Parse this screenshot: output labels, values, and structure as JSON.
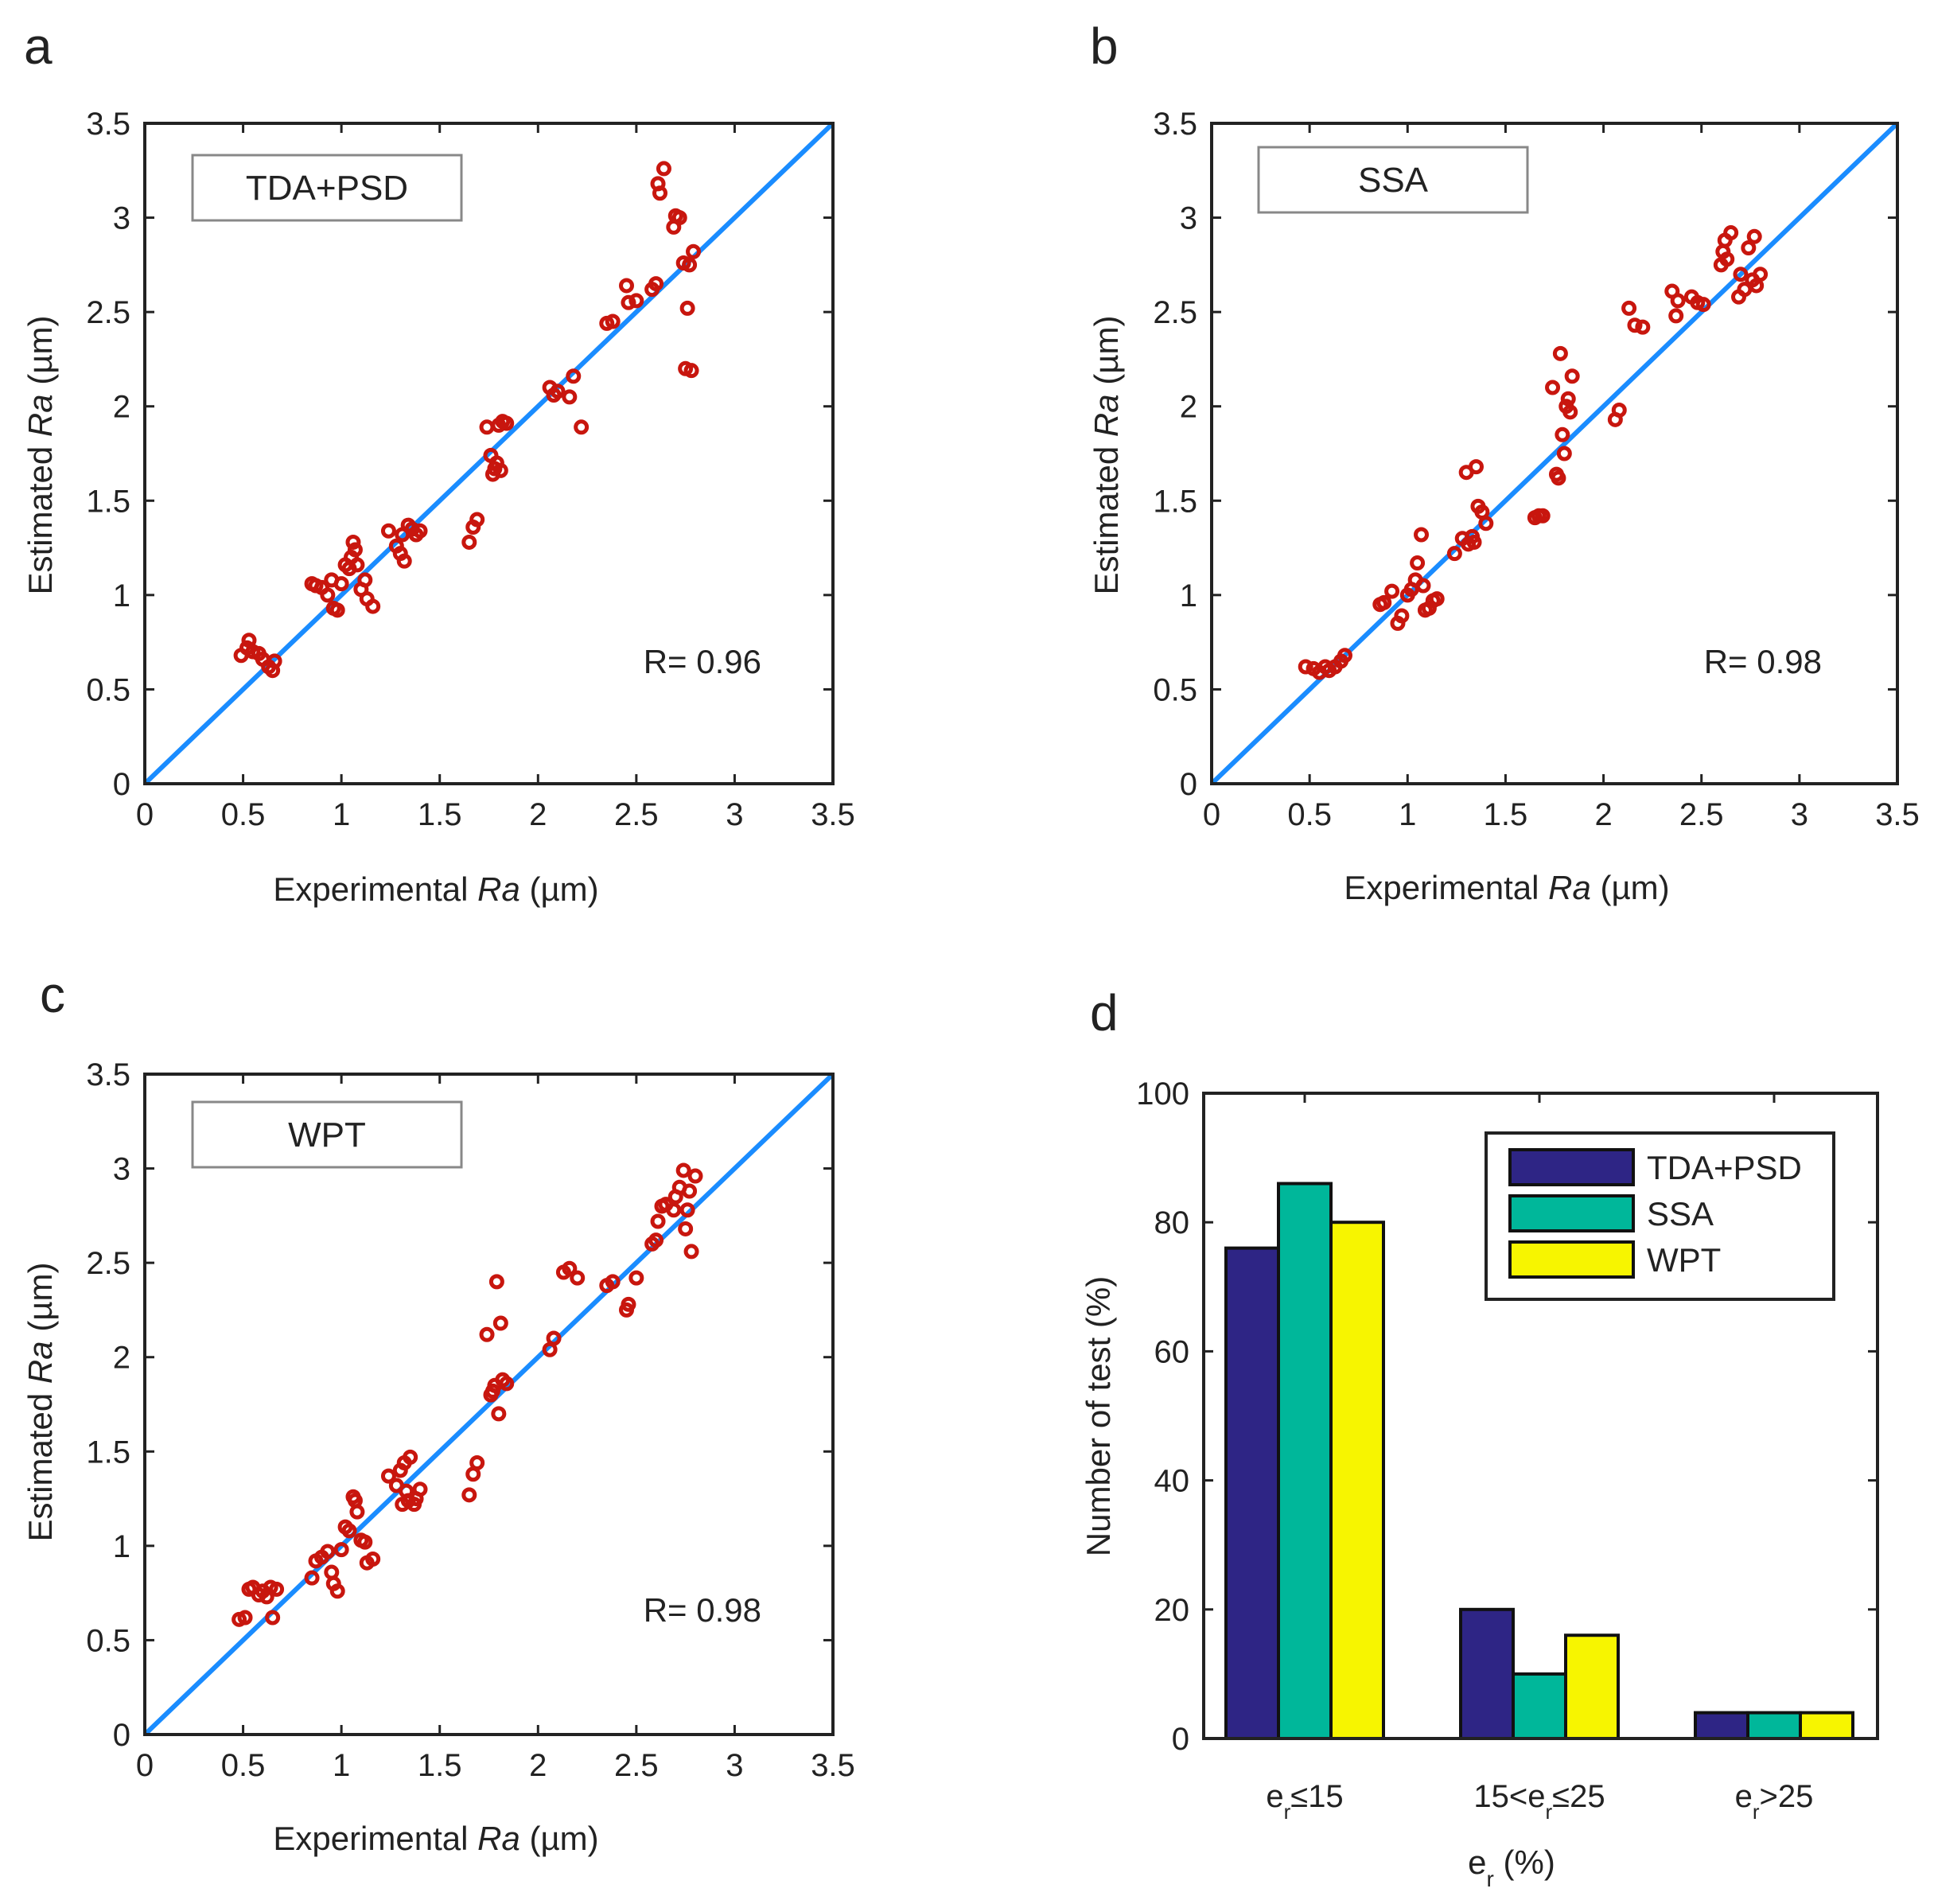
{
  "chart_data": [
    {
      "panel": "a",
      "type": "scatter",
      "legend": "TDA+PSD",
      "r_label": "R= 0.96",
      "xlabel_prefix": "Experimental ",
      "xlabel_italic": "Ra",
      "xlabel_suffix": " (µm)",
      "ylabel_prefix": "Estimated ",
      "ylabel_italic": "Ra",
      "ylabel_suffix": "  (µm)",
      "xlim": [
        0,
        3.5
      ],
      "ylim": [
        0,
        3.5
      ],
      "ticks": [
        0,
        0.5,
        1,
        1.5,
        2,
        2.5,
        3,
        3.5
      ],
      "tick_labels": [
        "0",
        "0.5",
        "1",
        "1.5",
        "2",
        "2.5",
        "3",
        "3.5"
      ],
      "points": [
        [
          0.49,
          0.68
        ],
        [
          0.52,
          0.72
        ],
        [
          0.53,
          0.76
        ],
        [
          0.55,
          0.7
        ],
        [
          0.58,
          0.69
        ],
        [
          0.6,
          0.66
        ],
        [
          0.63,
          0.62
        ],
        [
          0.65,
          0.6
        ],
        [
          0.66,
          0.65
        ],
        [
          0.85,
          1.06
        ],
        [
          0.87,
          1.05
        ],
        [
          0.9,
          1.04
        ],
        [
          0.93,
          1.0
        ],
        [
          0.95,
          1.08
        ],
        [
          0.96,
          0.93
        ],
        [
          0.98,
          0.92
        ],
        [
          1.0,
          1.06
        ],
        [
          1.02,
          1.16
        ],
        [
          1.04,
          1.14
        ],
        [
          1.05,
          1.2
        ],
        [
          1.06,
          1.28
        ],
        [
          1.07,
          1.24
        ],
        [
          1.08,
          1.16
        ],
        [
          1.1,
          1.03
        ],
        [
          1.12,
          1.08
        ],
        [
          1.13,
          0.98
        ],
        [
          1.16,
          0.94
        ],
        [
          1.24,
          1.34
        ],
        [
          1.28,
          1.26
        ],
        [
          1.3,
          1.22
        ],
        [
          1.31,
          1.32
        ],
        [
          1.32,
          1.18
        ],
        [
          1.34,
          1.37
        ],
        [
          1.36,
          1.35
        ],
        [
          1.38,
          1.32
        ],
        [
          1.4,
          1.34
        ],
        [
          1.65,
          1.28
        ],
        [
          1.67,
          1.36
        ],
        [
          1.69,
          1.4
        ],
        [
          1.74,
          1.89
        ],
        [
          1.76,
          1.74
        ],
        [
          1.77,
          1.64
        ],
        [
          1.78,
          1.67
        ],
        [
          1.79,
          1.7
        ],
        [
          1.8,
          1.9
        ],
        [
          1.81,
          1.66
        ],
        [
          1.82,
          1.92
        ],
        [
          1.84,
          1.91
        ],
        [
          2.06,
          2.1
        ],
        [
          2.08,
          2.06
        ],
        [
          2.1,
          2.08
        ],
        [
          2.16,
          2.05
        ],
        [
          2.18,
          2.16
        ],
        [
          2.22,
          1.89
        ],
        [
          2.35,
          2.44
        ],
        [
          2.38,
          2.45
        ],
        [
          2.45,
          2.64
        ],
        [
          2.46,
          2.55
        ],
        [
          2.5,
          2.56
        ],
        [
          2.58,
          2.62
        ],
        [
          2.6,
          2.65
        ],
        [
          2.61,
          3.18
        ],
        [
          2.62,
          3.13
        ],
        [
          2.64,
          3.26
        ],
        [
          2.69,
          2.95
        ],
        [
          2.7,
          3.01
        ],
        [
          2.72,
          3.0
        ],
        [
          2.74,
          2.76
        ],
        [
          2.75,
          2.2
        ],
        [
          2.76,
          2.52
        ],
        [
          2.77,
          2.75
        ],
        [
          2.78,
          2.19
        ],
        [
          2.79,
          2.82
        ]
      ]
    },
    {
      "panel": "b",
      "type": "scatter",
      "legend": "SSA",
      "r_label": "R= 0.98",
      "xlabel_prefix": "Experimental ",
      "xlabel_italic": "Ra",
      "xlabel_suffix": " (µm)",
      "ylabel_prefix": "Estimated ",
      "ylabel_italic": "Ra",
      "ylabel_suffix": "  (µm)",
      "xlim": [
        0,
        3.5
      ],
      "ylim": [
        0,
        3.5
      ],
      "ticks": [
        0,
        0.5,
        1,
        1.5,
        2,
        2.5,
        3,
        3.5
      ],
      "tick_labels": [
        "0",
        "0.5",
        "1",
        "1.5",
        "2",
        "2.5",
        "3",
        "3.5"
      ],
      "points": [
        [
          0.48,
          0.62
        ],
        [
          0.52,
          0.61
        ],
        [
          0.55,
          0.59
        ],
        [
          0.58,
          0.62
        ],
        [
          0.6,
          0.6
        ],
        [
          0.63,
          0.62
        ],
        [
          0.66,
          0.65
        ],
        [
          0.68,
          0.68
        ],
        [
          0.86,
          0.95
        ],
        [
          0.88,
          0.96
        ],
        [
          0.92,
          1.02
        ],
        [
          0.95,
          0.85
        ],
        [
          0.97,
          0.89
        ],
        [
          1.0,
          1.0
        ],
        [
          1.02,
          1.03
        ],
        [
          1.04,
          1.08
        ],
        [
          1.05,
          1.17
        ],
        [
          1.07,
          1.32
        ],
        [
          1.08,
          1.05
        ],
        [
          1.09,
          0.92
        ],
        [
          1.11,
          0.93
        ],
        [
          1.13,
          0.97
        ],
        [
          1.15,
          0.98
        ],
        [
          1.24,
          1.22
        ],
        [
          1.28,
          1.3
        ],
        [
          1.3,
          1.65
        ],
        [
          1.31,
          1.27
        ],
        [
          1.33,
          1.31
        ],
        [
          1.34,
          1.28
        ],
        [
          1.35,
          1.68
        ],
        [
          1.36,
          1.47
        ],
        [
          1.38,
          1.44
        ],
        [
          1.4,
          1.38
        ],
        [
          1.65,
          1.41
        ],
        [
          1.67,
          1.42
        ],
        [
          1.69,
          1.42
        ],
        [
          1.74,
          2.1
        ],
        [
          1.76,
          1.64
        ],
        [
          1.77,
          1.62
        ],
        [
          1.78,
          2.28
        ],
        [
          1.79,
          1.85
        ],
        [
          1.8,
          1.75
        ],
        [
          1.81,
          2.0
        ],
        [
          1.82,
          2.04
        ],
        [
          1.83,
          1.97
        ],
        [
          1.84,
          2.16
        ],
        [
          2.06,
          1.93
        ],
        [
          2.08,
          1.98
        ],
        [
          2.13,
          2.52
        ],
        [
          2.16,
          2.43
        ],
        [
          2.2,
          2.42
        ],
        [
          2.35,
          2.61
        ],
        [
          2.37,
          2.48
        ],
        [
          2.38,
          2.56
        ],
        [
          2.45,
          2.58
        ],
        [
          2.48,
          2.55
        ],
        [
          2.51,
          2.54
        ],
        [
          2.6,
          2.75
        ],
        [
          2.61,
          2.82
        ],
        [
          2.62,
          2.88
        ],
        [
          2.63,
          2.78
        ],
        [
          2.65,
          2.92
        ],
        [
          2.69,
          2.58
        ],
        [
          2.7,
          2.7
        ],
        [
          2.72,
          2.62
        ],
        [
          2.74,
          2.84
        ],
        [
          2.76,
          2.67
        ],
        [
          2.77,
          2.9
        ],
        [
          2.78,
          2.64
        ],
        [
          2.8,
          2.7
        ]
      ]
    },
    {
      "panel": "c",
      "type": "scatter",
      "legend": "WPT",
      "r_label": "R= 0.98",
      "xlabel_prefix": "Experimental ",
      "xlabel_italic": "Ra",
      "xlabel_suffix": " (µm)",
      "ylabel_prefix": "Estimated ",
      "ylabel_italic": "Ra",
      "ylabel_suffix": "  (µm)",
      "xlim": [
        0,
        3.5
      ],
      "ylim": [
        0,
        3.5
      ],
      "ticks": [
        0,
        0.5,
        1,
        1.5,
        2,
        2.5,
        3,
        3.5
      ],
      "tick_labels": [
        "0",
        "0.5",
        "1",
        "1.5",
        "2",
        "2.5",
        "3",
        "3.5"
      ],
      "points": [
        [
          0.48,
          0.61
        ],
        [
          0.51,
          0.62
        ],
        [
          0.53,
          0.77
        ],
        [
          0.55,
          0.78
        ],
        [
          0.58,
          0.74
        ],
        [
          0.6,
          0.76
        ],
        [
          0.62,
          0.73
        ],
        [
          0.64,
          0.78
        ],
        [
          0.65,
          0.62
        ],
        [
          0.67,
          0.77
        ],
        [
          0.85,
          0.83
        ],
        [
          0.87,
          0.92
        ],
        [
          0.9,
          0.94
        ],
        [
          0.93,
          0.97
        ],
        [
          0.95,
          0.86
        ],
        [
          0.96,
          0.8
        ],
        [
          0.98,
          0.76
        ],
        [
          1.0,
          0.98
        ],
        [
          1.02,
          1.1
        ],
        [
          1.04,
          1.08
        ],
        [
          1.06,
          1.26
        ],
        [
          1.07,
          1.24
        ],
        [
          1.08,
          1.18
        ],
        [
          1.1,
          1.03
        ],
        [
          1.12,
          1.02
        ],
        [
          1.13,
          0.91
        ],
        [
          1.16,
          0.93
        ],
        [
          1.24,
          1.37
        ],
        [
          1.28,
          1.32
        ],
        [
          1.3,
          1.4
        ],
        [
          1.31,
          1.22
        ],
        [
          1.32,
          1.44
        ],
        [
          1.33,
          1.29
        ],
        [
          1.34,
          1.24
        ],
        [
          1.35,
          1.47
        ],
        [
          1.37,
          1.22
        ],
        [
          1.38,
          1.25
        ],
        [
          1.4,
          1.3
        ],
        [
          1.65,
          1.27
        ],
        [
          1.67,
          1.38
        ],
        [
          1.69,
          1.44
        ],
        [
          1.74,
          2.12
        ],
        [
          1.76,
          1.8
        ],
        [
          1.77,
          1.82
        ],
        [
          1.78,
          1.85
        ],
        [
          1.79,
          2.4
        ],
        [
          1.8,
          1.7
        ],
        [
          1.81,
          2.18
        ],
        [
          1.82,
          1.88
        ],
        [
          1.84,
          1.86
        ],
        [
          2.06,
          2.04
        ],
        [
          2.08,
          2.1
        ],
        [
          2.13,
          2.45
        ],
        [
          2.16,
          2.47
        ],
        [
          2.2,
          2.42
        ],
        [
          2.35,
          2.38
        ],
        [
          2.38,
          2.4
        ],
        [
          2.45,
          2.25
        ],
        [
          2.46,
          2.28
        ],
        [
          2.5,
          2.42
        ],
        [
          2.58,
          2.6
        ],
        [
          2.6,
          2.62
        ],
        [
          2.61,
          2.72
        ],
        [
          2.63,
          2.8
        ],
        [
          2.65,
          2.81
        ],
        [
          2.69,
          2.78
        ],
        [
          2.7,
          2.85
        ],
        [
          2.72,
          2.9
        ],
        [
          2.74,
          2.99
        ],
        [
          2.75,
          2.68
        ],
        [
          2.76,
          2.78
        ],
        [
          2.77,
          2.88
        ],
        [
          2.78,
          2.56
        ],
        [
          2.8,
          2.96
        ]
      ]
    },
    {
      "panel": "d",
      "type": "bar",
      "categories": [
        "e_r≤15",
        "15<e_r≤25",
        "e_r>25"
      ],
      "category_parts": [
        [
          "e",
          "r",
          "≤15"
        ],
        [
          "15<e",
          "r",
          "≤25"
        ],
        [
          "e",
          "r",
          ">25"
        ]
      ],
      "series": [
        {
          "name": "TDA+PSD",
          "color": "#2e2585",
          "values": [
            76,
            20,
            4
          ]
        },
        {
          "name": "SSA",
          "color": "#00b79a",
          "values": [
            86,
            10,
            4
          ]
        },
        {
          "name": "WPT",
          "color": "#f7f500",
          "values": [
            80,
            16,
            4
          ]
        }
      ],
      "ylim": [
        0,
        100
      ],
      "yticks": [
        0,
        20,
        40,
        60,
        80,
        100
      ],
      "ytick_labels": [
        "0",
        "20",
        "40",
        "60",
        "80",
        "100"
      ],
      "ylabel": "Number of test (%)",
      "xlabel_base": "e",
      "xlabel_sub": "r",
      "xlabel_suffix": " (%)",
      "legend_position": "top-right"
    }
  ],
  "panel_letters": {
    "a": "a",
    "b": "b",
    "c": "c",
    "d": "d"
  }
}
